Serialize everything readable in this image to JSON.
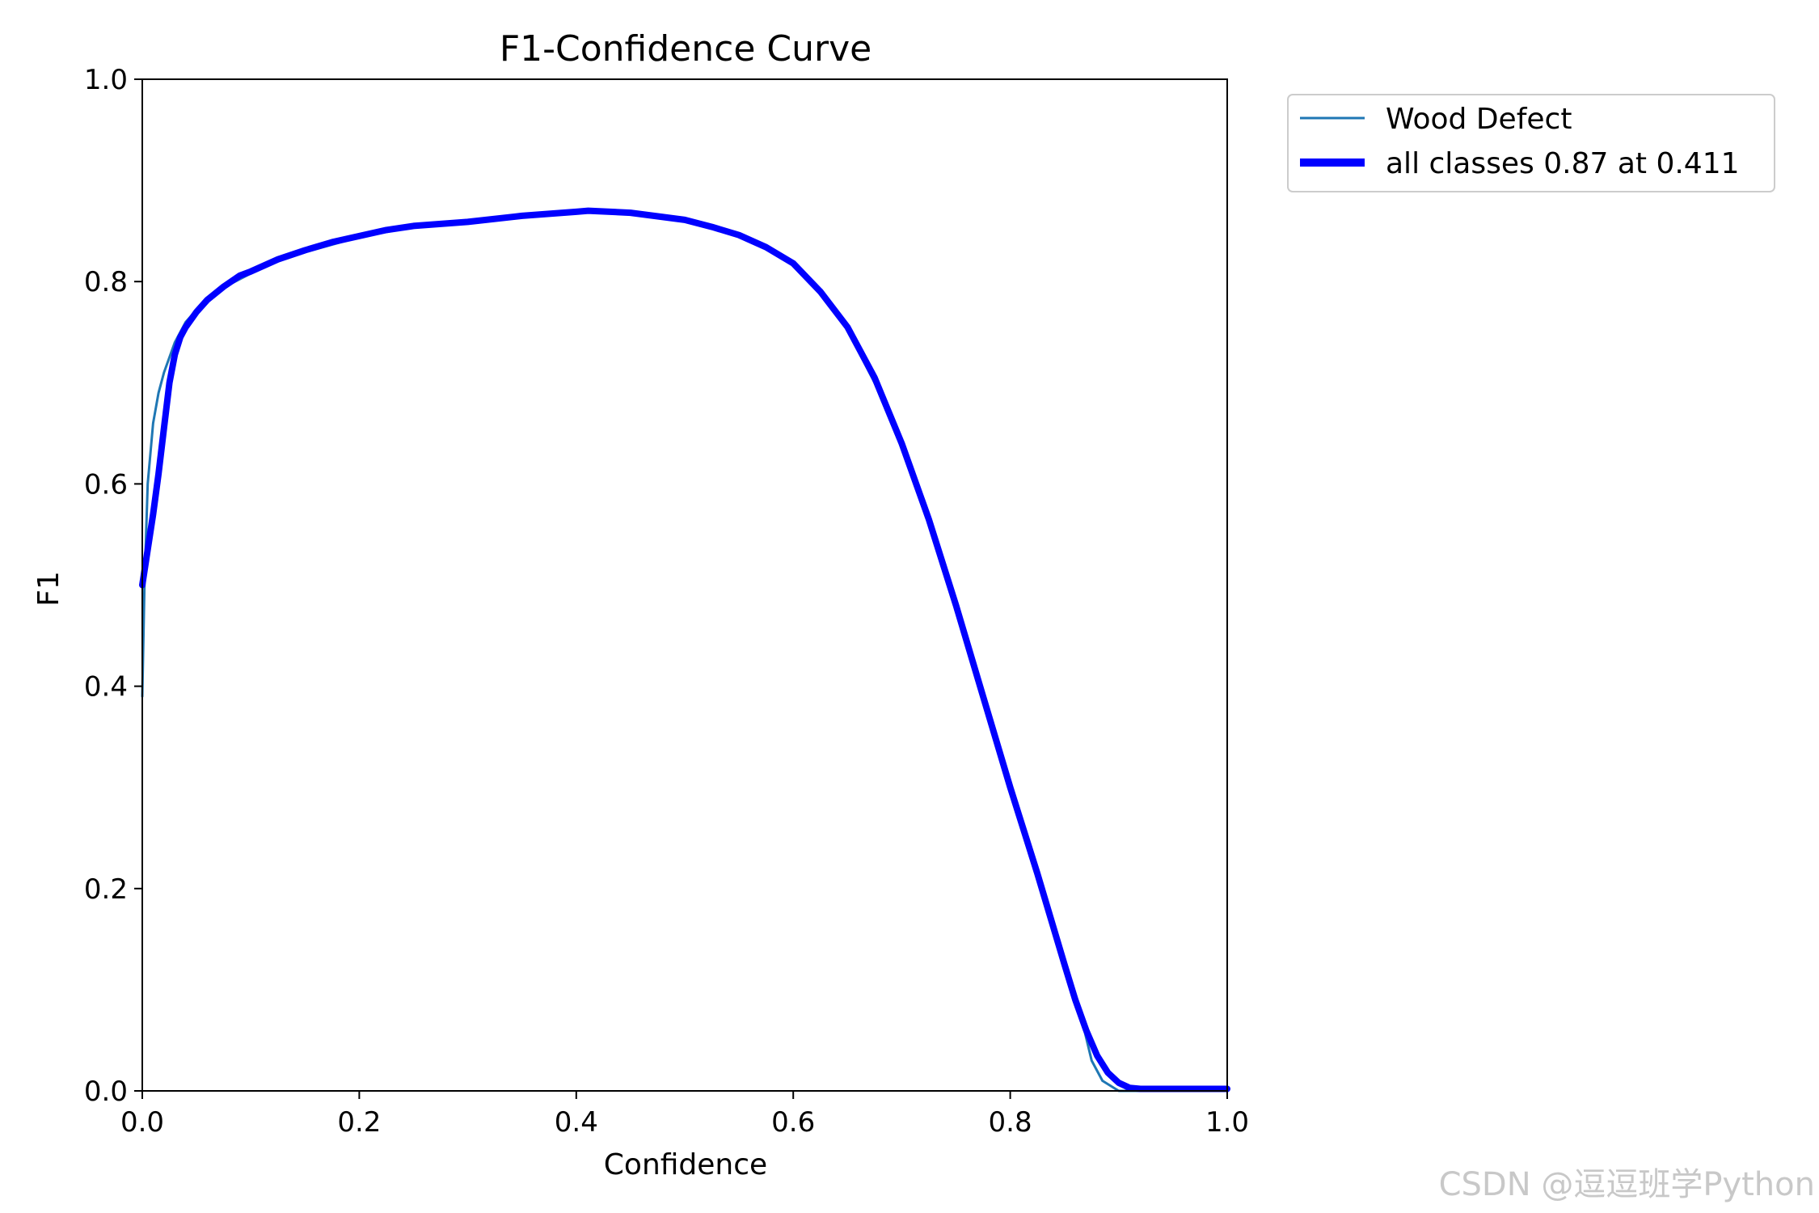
{
  "chart_data": {
    "type": "line",
    "title": "F1-Confidence Curve",
    "xlabel": "Confidence",
    "ylabel": "F1",
    "xlim": [
      0.0,
      1.0
    ],
    "ylim": [
      0.0,
      1.0
    ],
    "xticks": [
      "0.0",
      "0.2",
      "0.4",
      "0.6",
      "0.8",
      "1.0"
    ],
    "yticks": [
      "0.0",
      "0.2",
      "0.4",
      "0.6",
      "0.8",
      "1.0"
    ],
    "grid": false,
    "legend_position": "outside-top-right",
    "series": [
      {
        "name": "Wood Defect",
        "color": "#1f77b4",
        "line_style": "thin",
        "x": [
          0.0,
          0.002,
          0.005,
          0.01,
          0.015,
          0.02,
          0.03,
          0.04,
          0.05,
          0.06,
          0.08,
          0.1,
          0.125,
          0.15,
          0.2,
          0.25,
          0.3,
          0.35,
          0.4,
          0.411,
          0.45,
          0.5,
          0.55,
          0.6,
          0.625,
          0.65,
          0.675,
          0.7,
          0.725,
          0.75,
          0.775,
          0.8,
          0.825,
          0.85,
          0.865,
          0.875,
          0.885,
          0.9,
          0.905,
          0.91,
          0.93,
          0.95,
          1.0
        ],
        "y": [
          0.39,
          0.5,
          0.6,
          0.66,
          0.69,
          0.71,
          0.74,
          0.76,
          0.772,
          0.782,
          0.797,
          0.808,
          0.82,
          0.829,
          0.844,
          0.854,
          0.859,
          0.865,
          0.869,
          0.87,
          0.868,
          0.861,
          0.846,
          0.818,
          0.79,
          0.752,
          0.7,
          0.635,
          0.56,
          0.48,
          0.39,
          0.3,
          0.215,
          0.125,
          0.075,
          0.03,
          0.01,
          0.0,
          0.0,
          0.0,
          0.0,
          0.0,
          0.0
        ]
      },
      {
        "name": "all classes 0.87 at 0.411",
        "color": "#0000ff",
        "line_style": "thick",
        "x": [
          0.0,
          0.005,
          0.01,
          0.015,
          0.02,
          0.025,
          0.03,
          0.035,
          0.04,
          0.05,
          0.06,
          0.075,
          0.09,
          0.1,
          0.125,
          0.15,
          0.175,
          0.2,
          0.225,
          0.25,
          0.3,
          0.35,
          0.4,
          0.411,
          0.45,
          0.5,
          0.525,
          0.55,
          0.575,
          0.6,
          0.625,
          0.65,
          0.675,
          0.7,
          0.725,
          0.75,
          0.775,
          0.8,
          0.825,
          0.85,
          0.86,
          0.87,
          0.88,
          0.89,
          0.9,
          0.91,
          0.92,
          0.95,
          1.0
        ],
        "y": [
          0.5,
          0.535,
          0.57,
          0.61,
          0.655,
          0.7,
          0.728,
          0.745,
          0.755,
          0.77,
          0.782,
          0.795,
          0.806,
          0.81,
          0.822,
          0.831,
          0.839,
          0.845,
          0.851,
          0.855,
          0.859,
          0.865,
          0.869,
          0.87,
          0.868,
          0.861,
          0.854,
          0.846,
          0.834,
          0.818,
          0.79,
          0.755,
          0.705,
          0.64,
          0.565,
          0.48,
          0.39,
          0.3,
          0.215,
          0.125,
          0.09,
          0.06,
          0.035,
          0.018,
          0.008,
          0.003,
          0.002,
          0.002,
          0.002
        ]
      }
    ]
  },
  "watermark": "CSDN @逗逗班学Python"
}
